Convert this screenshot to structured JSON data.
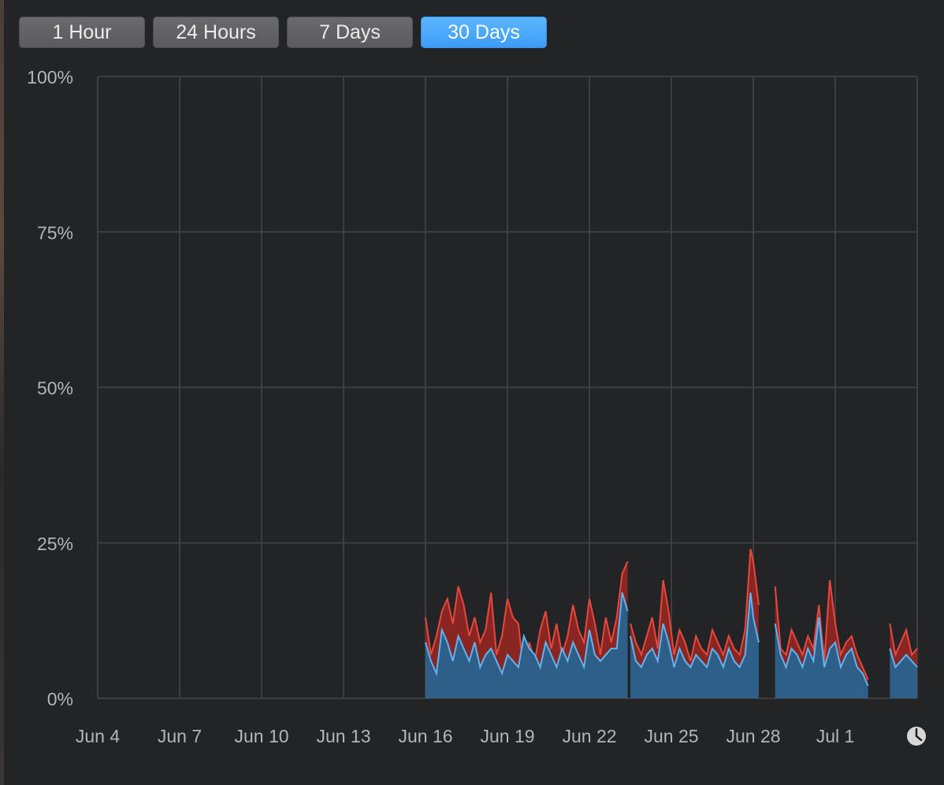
{
  "range_selector": {
    "buttons": [
      {
        "label": "1 Hour",
        "active": false
      },
      {
        "label": "24 Hours",
        "active": false
      },
      {
        "label": "7 Days",
        "active": false
      },
      {
        "label": "30 Days",
        "active": true
      }
    ]
  },
  "chart_data": {
    "type": "area",
    "stacked": true,
    "ylim": [
      0,
      100
    ],
    "y_ticks": [
      "0%",
      "25%",
      "50%",
      "75%",
      "100%"
    ],
    "x_range_days": [
      "Jun 4",
      "Jul 3"
    ],
    "x_ticks": [
      "Jun 4",
      "Jun 7",
      "Jun 10",
      "Jun 13",
      "Jun 16",
      "Jun 19",
      "Jun 22",
      "Jun 25",
      "Jun 28",
      "Jul 1"
    ],
    "grid": true,
    "colors": {
      "lower_fill": "#2e5f88",
      "lower_line": "#5eb3f2",
      "upper_fill": "#8a2622",
      "upper_line": "#e8473e",
      "grid": "#3c3e40",
      "background": "#232425"
    },
    "series": [
      {
        "segments": [
          {
            "x": [
              16.0,
              16.2,
              16.4,
              16.6,
              16.8,
              17.0,
              17.2,
              17.4,
              17.6,
              17.8,
              18.0,
              18.2,
              18.4,
              18.6,
              18.8,
              19.0,
              19.2,
              19.4,
              19.6,
              19.8,
              20.0,
              20.2,
              20.4,
              20.6,
              20.8,
              21.0,
              21.2,
              21.4,
              21.6,
              21.8,
              22.0,
              22.2,
              22.4,
              22.6,
              22.8,
              23.0,
              23.2,
              23.4
            ],
            "y": [
              13,
              7,
              10,
              14,
              16,
              12,
              18,
              15,
              10,
              13,
              9,
              11,
              17,
              7,
              10,
              16,
              13,
              12,
              4,
              9,
              6,
              11,
              14,
              8,
              12,
              7,
              10,
              15,
              11,
              9,
              16,
              12,
              7,
              13,
              9,
              13,
              20,
              22
            ]
          },
          {
            "x": [
              23.5,
              23.7,
              23.9,
              24.1,
              24.3,
              24.5,
              24.7,
              24.9,
              25.1,
              25.3,
              25.5,
              25.7,
              25.9,
              26.1,
              26.3,
              26.5,
              26.7,
              26.9,
              27.1,
              27.3,
              27.5,
              27.7,
              27.9,
              28.0,
              28.2
            ],
            "y": [
              12,
              9,
              7,
              10,
              13,
              8,
              19,
              14,
              7,
              11,
              9,
              6,
              10,
              8,
              7,
              11,
              9,
              7,
              10,
              8,
              7,
              11,
              24,
              22,
              15
            ]
          },
          {
            "x": [
              28.8,
              29.0,
              29.2,
              29.4,
              29.6,
              29.8,
              30.0,
              30.2,
              30.4,
              30.6,
              30.8,
              31.0,
              31.2,
              31.4,
              31.6,
              31.8,
              32.0,
              32.2
            ],
            "y": [
              18,
              8,
              7,
              11,
              9,
              7,
              10,
              8,
              15,
              6,
              19,
              12,
              7,
              9,
              10,
              7,
              5,
              3
            ]
          },
          {
            "x": [
              33.0,
              33.2,
              33.4,
              33.6,
              33.8,
              34.0
            ],
            "y": [
              12,
              7,
              9,
              11,
              7,
              8
            ]
          }
        ]
      },
      {
        "segments": [
          {
            "x": [
              16.0,
              16.2,
              16.4,
              16.6,
              16.8,
              17.0,
              17.2,
              17.4,
              17.6,
              17.8,
              18.0,
              18.2,
              18.4,
              18.6,
              18.8,
              19.0,
              19.2,
              19.4,
              19.6,
              19.8,
              20.0,
              20.2,
              20.4,
              20.6,
              20.8,
              21.0,
              21.2,
              21.4,
              21.6,
              21.8,
              22.0,
              22.2,
              22.4,
              22.6,
              22.8,
              23.0,
              23.2,
              23.4
            ],
            "y": [
              9,
              6,
              4,
              11,
              9,
              6,
              10,
              8,
              6,
              9,
              5,
              7,
              8,
              6,
              4,
              7,
              6,
              5,
              10,
              8,
              7,
              5,
              9,
              7,
              5,
              8,
              6,
              9,
              7,
              5,
              11,
              7,
              6,
              7,
              8,
              8,
              17,
              14
            ]
          },
          {
            "x": [
              23.5,
              23.7,
              23.9,
              24.1,
              24.3,
              24.5,
              24.7,
              24.9,
              25.1,
              25.3,
              25.5,
              25.7,
              25.9,
              26.1,
              26.3,
              26.5,
              26.7,
              26.9,
              27.1,
              27.3,
              27.5,
              27.7,
              27.9,
              28.0,
              28.2
            ],
            "y": [
              10,
              6,
              5,
              7,
              8,
              6,
              12,
              9,
              5,
              8,
              6,
              5,
              7,
              6,
              5,
              8,
              7,
              5,
              8,
              6,
              5,
              7,
              17,
              13,
              9
            ]
          },
          {
            "x": [
              28.8,
              29.0,
              29.2,
              29.4,
              29.6,
              29.8,
              30.0,
              30.2,
              30.4,
              30.6,
              30.8,
              31.0,
              31.2,
              31.4,
              31.6,
              31.8,
              32.0,
              32.2
            ],
            "y": [
              12,
              7,
              5,
              8,
              7,
              5,
              8,
              6,
              13,
              5,
              8,
              9,
              5,
              7,
              8,
              5,
              4,
              2
            ]
          },
          {
            "x": [
              33.0,
              33.2,
              33.4,
              33.6,
              33.8,
              34.0
            ],
            "y": [
              8,
              5,
              6,
              7,
              6,
              5
            ]
          }
        ]
      }
    ]
  }
}
